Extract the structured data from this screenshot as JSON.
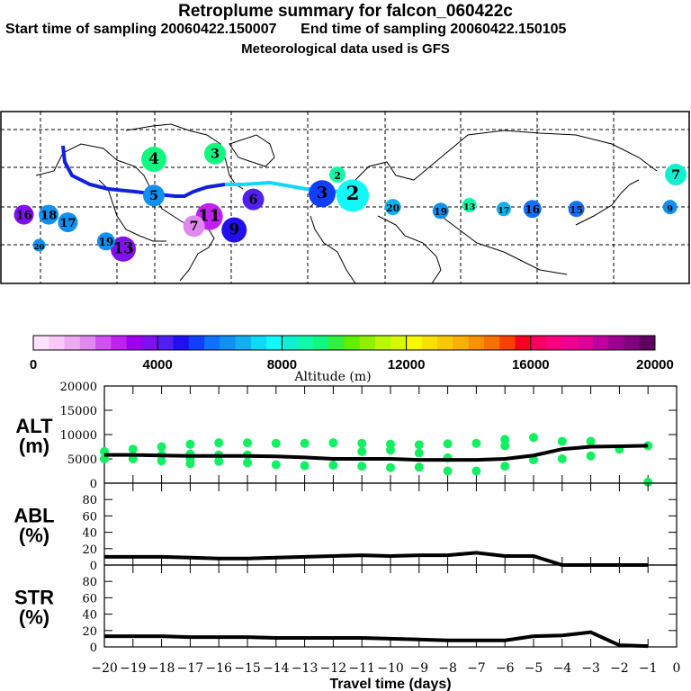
{
  "header": {
    "title": "Retroplume summary for falcon_060422c",
    "start_label": "Start time of sampling 20060422.150007",
    "end_label": "End time of sampling 20060422.150105",
    "met_label": "Meteorological data used is GFS"
  },
  "colorbar": {
    "label": "Altitude (m)",
    "ticks": [
      "0",
      "4000",
      "8000",
      "12000",
      "16000",
      "20000"
    ],
    "range": [
      0,
      20000
    ],
    "colors": [
      "#ffe0ff",
      "#f8c8f8",
      "#eeaaf0",
      "#e088f0",
      "#d050f0",
      "#c020f0",
      "#a000f0",
      "#8010f0",
      "#5020f0",
      "#2010f0",
      "#1040ff",
      "#1070ff",
      "#1090f0",
      "#10b0f0",
      "#10d8f8",
      "#10f8f8",
      "#10f0d0",
      "#10f8a8",
      "#10f880",
      "#30f040",
      "#60f000",
      "#90f000",
      "#b8f800",
      "#d8f800",
      "#f8f800",
      "#f8e000",
      "#f8c800",
      "#f8b000",
      "#f89000",
      "#f87000",
      "#f84000",
      "#f80020",
      "#f80060",
      "#f80080",
      "#f00090",
      "#e00098",
      "#c000a0",
      "#a00090",
      "#800080",
      "#600060"
    ]
  },
  "map": {
    "trajectory_color": "#1020e0",
    "trajectory_color2": "#10d8f8"
  },
  "chart_data": [
    {
      "type": "line",
      "panel": "ALT",
      "ylabel": "ALT\n(m)",
      "ylabel_line1": "ALT",
      "ylabel_line2": "(m)",
      "ylim": [
        0,
        20000
      ],
      "yticks": [
        "0",
        "5000",
        "10000",
        "15000",
        "20000"
      ],
      "xlim": [
        -20,
        0
      ],
      "x": [
        -20,
        -19,
        -18,
        -17,
        -16,
        -15,
        -14,
        -13,
        -12,
        -11,
        -10,
        -9,
        -8,
        -7,
        -6,
        -5,
        -4,
        -3,
        -2,
        -1
      ],
      "values": [
        5800,
        5800,
        5700,
        5600,
        5600,
        5600,
        5500,
        5300,
        5000,
        5000,
        5000,
        4800,
        4800,
        4800,
        5000,
        5700,
        7000,
        7500,
        7600,
        7700
      ],
      "scatter_color": "#10f060",
      "scatter": [
        [
          -20,
          6500
        ],
        [
          -20,
          5000
        ],
        [
          -19,
          7000
        ],
        [
          -19,
          5000
        ],
        [
          -18,
          7500
        ],
        [
          -18,
          5800
        ],
        [
          -18,
          4600
        ],
        [
          -17,
          8000
        ],
        [
          -17,
          6000
        ],
        [
          -17,
          5000
        ],
        [
          -17,
          4000
        ],
        [
          -16,
          8300
        ],
        [
          -16,
          5800
        ],
        [
          -16,
          4500
        ],
        [
          -15,
          8300
        ],
        [
          -15,
          5800
        ],
        [
          -15,
          4200
        ],
        [
          -14,
          8200
        ],
        [
          -14,
          3800
        ],
        [
          -13,
          8200
        ],
        [
          -13,
          3600
        ],
        [
          -12,
          8300
        ],
        [
          -12,
          3700
        ],
        [
          -11,
          8200
        ],
        [
          -11,
          6500
        ],
        [
          -11,
          3500
        ],
        [
          -10,
          8000
        ],
        [
          -10,
          6800
        ],
        [
          -10,
          3200
        ],
        [
          -9,
          7900
        ],
        [
          -9,
          6200
        ],
        [
          -9,
          3300
        ],
        [
          -8,
          8100
        ],
        [
          -8,
          5200
        ],
        [
          -8,
          2500
        ],
        [
          -7,
          8200
        ],
        [
          -7,
          2500
        ],
        [
          -6,
          9000
        ],
        [
          -6,
          7700
        ],
        [
          -6,
          3500
        ],
        [
          -5,
          9400
        ],
        [
          -5,
          4800
        ],
        [
          -4,
          8600
        ],
        [
          -4,
          5000
        ],
        [
          -3,
          8600
        ],
        [
          -3,
          5600
        ],
        [
          -2,
          7000
        ],
        [
          -1,
          7700
        ],
        [
          -1,
          200
        ]
      ]
    },
    {
      "type": "line",
      "panel": "ABL",
      "ylabel_line1": "ABL",
      "ylabel_line2": "(%)",
      "ylim": [
        0,
        100
      ],
      "yticks": [
        "0",
        "20",
        "40",
        "60",
        "80"
      ],
      "xlim": [
        -20,
        0
      ],
      "x": [
        -20,
        -19,
        -18,
        -17,
        -16,
        -15,
        -14,
        -13,
        -12,
        -11,
        -10,
        -9,
        -8,
        -7,
        -6,
        -5,
        -4,
        -3,
        -2,
        -1
      ],
      "values": [
        10,
        10,
        10,
        9,
        8,
        8,
        9,
        10,
        11,
        12,
        11,
        12,
        12,
        15,
        11,
        11,
        0,
        0,
        0,
        0
      ]
    },
    {
      "type": "line",
      "panel": "STR",
      "ylabel_line1": "STR",
      "ylabel_line2": "(%)",
      "ylim": [
        0,
        100
      ],
      "yticks": [
        "0",
        "20",
        "40",
        "60",
        "80"
      ],
      "xlim": [
        -20,
        0
      ],
      "x": [
        -20,
        -19,
        -18,
        -17,
        -16,
        -15,
        -14,
        -13,
        -12,
        -11,
        -10,
        -9,
        -8,
        -7,
        -6,
        -5,
        -4,
        -3,
        -2,
        -1
      ],
      "values": [
        13,
        13,
        13,
        12,
        12,
        12,
        11,
        11,
        11,
        11,
        10,
        9,
        8,
        8,
        8,
        13,
        14,
        18,
        2,
        1
      ],
      "xlabel": "Travel time (days)",
      "xticks": [
        "−20",
        "−19",
        "−18",
        "−17",
        "−16",
        "−15",
        "−14",
        "−13",
        "−12",
        "−11",
        "−10",
        "−9",
        "−8",
        "−7",
        "−6",
        "−5",
        "−4",
        "−3",
        "−2",
        "−1",
        "0"
      ]
    }
  ],
  "map_points": [
    {
      "label": "4",
      "lon": -100,
      "lat": 55,
      "alt": 9000,
      "r": 14
    },
    {
      "label": "3",
      "lon": -68,
      "lat": 58,
      "alt": 9000,
      "r": 12
    },
    {
      "label": "5",
      "lon": -100,
      "lat": 36,
      "alt": 6000,
      "r": 12
    },
    {
      "label": "6",
      "lon": -48,
      "lat": 34,
      "alt": 4000,
      "r": 12
    },
    {
      "label": "11",
      "lon": -71,
      "lat": 25,
      "alt": 2500,
      "r": 15
    },
    {
      "label": "7",
      "lon": -79,
      "lat": 20,
      "alt": 1800,
      "r": 12
    },
    {
      "label": "9",
      "lon": -58,
      "lat": 18,
      "alt": 4600,
      "r": 14
    },
    {
      "label": "13",
      "lon": -116,
      "lat": 8,
      "alt": 3500,
      "r": 14
    },
    {
      "label": "19",
      "lon": -125,
      "lat": 12,
      "alt": 6000,
      "r": 10
    },
    {
      "label": "16",
      "lon": -168,
      "lat": 26,
      "alt": 3800,
      "r": 11
    },
    {
      "label": "18",
      "lon": -155,
      "lat": 26,
      "alt": 6000,
      "r": 11
    },
    {
      "label": "17",
      "lon": -145,
      "lat": 22,
      "alt": 6000,
      "r": 11
    },
    {
      "label": "20",
      "lon": -160,
      "lat": 10,
      "alt": 6000,
      "r": 7
    },
    {
      "label": "3",
      "lon": -12,
      "lat": 37,
      "alt": 5400,
      "r": 15
    },
    {
      "label": "2",
      "lon": 4,
      "lat": 36,
      "alt": 7800,
      "r": 18
    },
    {
      "label": "2",
      "lon": -4,
      "lat": 47,
      "alt": 8500,
      "r": 9
    },
    {
      "label": "20",
      "lon": 25,
      "lat": 30,
      "alt": 6500,
      "r": 9
    },
    {
      "label": "19",
      "lon": 50,
      "lat": 28,
      "alt": 6000,
      "r": 9
    },
    {
      "label": "13",
      "lon": 65,
      "lat": 31,
      "alt": 8500,
      "r": 8
    },
    {
      "label": "17",
      "lon": 83,
      "lat": 29,
      "alt": 6500,
      "r": 8
    },
    {
      "label": "16",
      "lon": 98,
      "lat": 29,
      "alt": 5500,
      "r": 10
    },
    {
      "label": "15",
      "lon": 121,
      "lat": 29,
      "alt": 5500,
      "r": 9
    },
    {
      "label": "7",
      "lon": 173,
      "lat": 47,
      "alt": 8400,
      "r": 12
    },
    {
      "label": "9",
      "lon": 170,
      "lat": 30,
      "alt": 6000,
      "r": 8
    },
    {
      "label": "12",
      "lon": 193,
      "lat": 18,
      "alt": 4500,
      "r": 7
    }
  ]
}
